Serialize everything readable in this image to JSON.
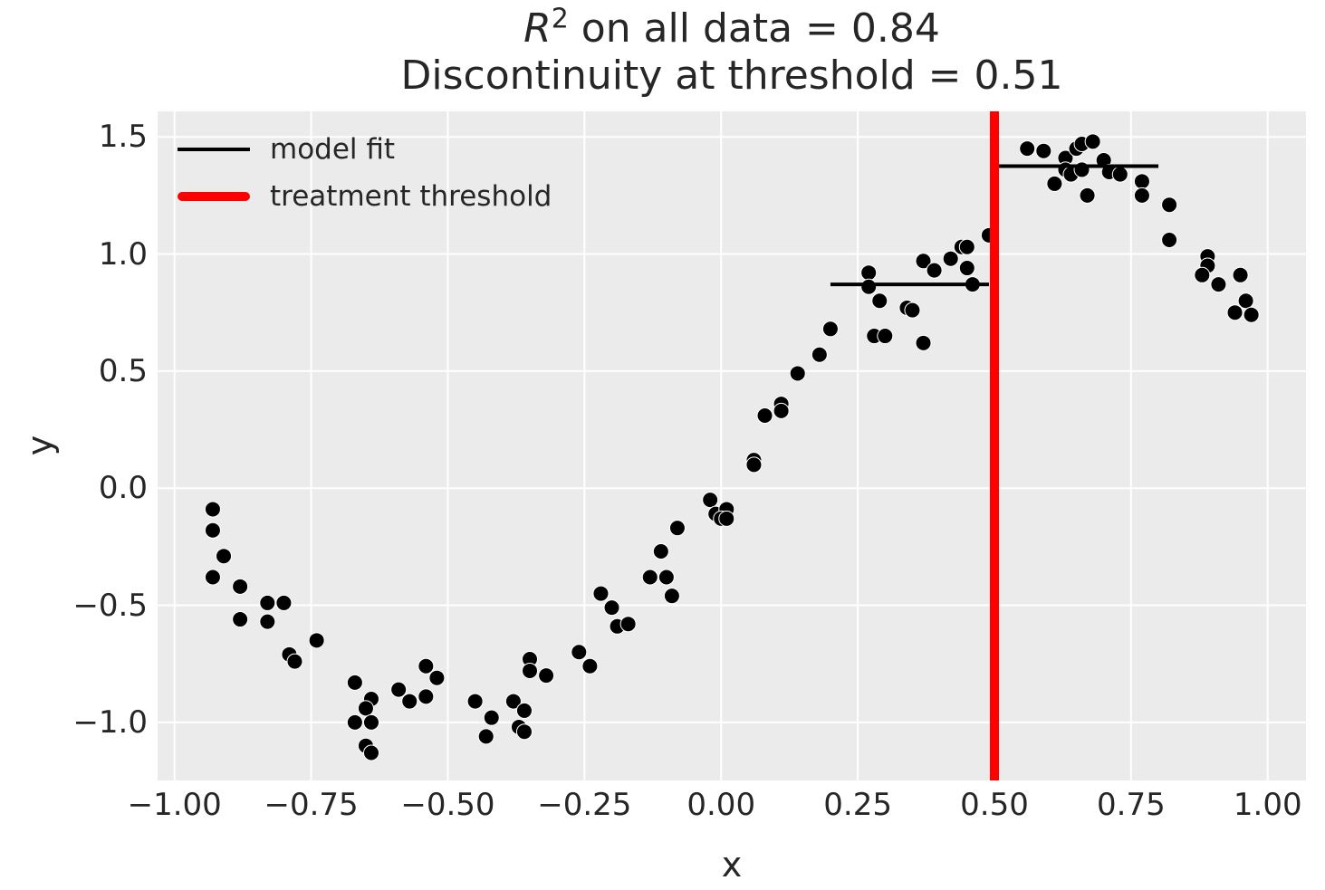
{
  "title": {
    "r_symbol": "R",
    "exponent": "2",
    "line1_rest": " on all data = 0.84",
    "line2": "Discontinuity at threshold = 0.51"
  },
  "legend": {
    "items": [
      {
        "label": "model fit",
        "color": "#000000",
        "style": "thin-line"
      },
      {
        "label": "treatment threshold",
        "color": "#ff0000",
        "style": "thick-line"
      }
    ]
  },
  "axes": {
    "xlabel": "x",
    "ylabel": "y",
    "x_ticks": [
      {
        "value": -1.0,
        "label": "−1.00"
      },
      {
        "value": -0.75,
        "label": "−0.75"
      },
      {
        "value": -0.5,
        "label": "−0.50"
      },
      {
        "value": -0.25,
        "label": "−0.25"
      },
      {
        "value": 0.0,
        "label": "0.00"
      },
      {
        "value": 0.25,
        "label": "0.25"
      },
      {
        "value": 0.5,
        "label": "0.50"
      },
      {
        "value": 0.75,
        "label": "0.75"
      },
      {
        "value": 1.0,
        "label": "1.00"
      }
    ],
    "y_ticks": [
      {
        "value": 1.5,
        "label": "1.5"
      },
      {
        "value": 1.0,
        "label": "1.0"
      },
      {
        "value": 0.5,
        "label": "0.5"
      },
      {
        "value": 0.0,
        "label": "0.0"
      },
      {
        "value": -0.5,
        "label": "−0.5"
      },
      {
        "value": -1.0,
        "label": "−1.0"
      }
    ]
  },
  "colors": {
    "figure_background": "#ffffff",
    "plot_background": "#ebebeb",
    "grid": "#ffffff",
    "scatter": "#000000",
    "fit_line": "#000000",
    "threshold_line": "#ff0000",
    "text": "#262626"
  },
  "chart_data": {
    "type": "scatter",
    "title": "R^2 on all data = 0.84\nDiscontinuity at threshold = 0.51",
    "xlabel": "x",
    "ylabel": "y",
    "xlim": [
      -1.031,
      1.07
    ],
    "ylim": [
      -1.248,
      1.609
    ],
    "grid": true,
    "legend_position": "upper left",
    "r_squared_all_data": 0.84,
    "discontinuity_at_threshold": 0.51,
    "treatment_threshold_x": 0.5,
    "model_fit_segments": [
      {
        "x_start": 0.2,
        "x_end": 0.49,
        "y": 0.87
      },
      {
        "x_start": 0.5,
        "x_end": 0.8,
        "y": 1.375
      }
    ],
    "points": [
      [
        -0.93,
        -0.09
      ],
      [
        -0.93,
        -0.18
      ],
      [
        -0.91,
        -0.29
      ],
      [
        -0.93,
        -0.38
      ],
      [
        -0.88,
        -0.42
      ],
      [
        -0.83,
        -0.49
      ],
      [
        -0.8,
        -0.49
      ],
      [
        -0.88,
        -0.56
      ],
      [
        -0.83,
        -0.57
      ],
      [
        -0.74,
        -0.65
      ],
      [
        -0.79,
        -0.71
      ],
      [
        -0.78,
        -0.74
      ],
      [
        -0.67,
        -0.83
      ],
      [
        -0.64,
        -0.9
      ],
      [
        -0.65,
        -0.94
      ],
      [
        -0.67,
        -1.0
      ],
      [
        -0.64,
        -1.0
      ],
      [
        -0.65,
        -1.1
      ],
      [
        -0.64,
        -1.13
      ],
      [
        -0.59,
        -0.86
      ],
      [
        -0.57,
        -0.91
      ],
      [
        -0.54,
        -0.76
      ],
      [
        -0.52,
        -0.81
      ],
      [
        -0.54,
        -0.89
      ],
      [
        -0.45,
        -0.91
      ],
      [
        -0.42,
        -0.98
      ],
      [
        -0.43,
        -1.06
      ],
      [
        -0.38,
        -0.91
      ],
      [
        -0.36,
        -0.95
      ],
      [
        -0.37,
        -1.02
      ],
      [
        -0.36,
        -1.04
      ],
      [
        -0.35,
        -0.73
      ],
      [
        -0.35,
        -0.78
      ],
      [
        -0.32,
        -0.8
      ],
      [
        -0.26,
        -0.7
      ],
      [
        -0.24,
        -0.76
      ],
      [
        -0.22,
        -0.45
      ],
      [
        -0.2,
        -0.51
      ],
      [
        -0.19,
        -0.59
      ],
      [
        -0.17,
        -0.58
      ],
      [
        -0.13,
        -0.38
      ],
      [
        -0.1,
        -0.38
      ],
      [
        -0.11,
        -0.27
      ],
      [
        -0.09,
        -0.46
      ],
      [
        -0.08,
        -0.17
      ],
      [
        -0.02,
        -0.05
      ],
      [
        -0.01,
        -0.11
      ],
      [
        0.01,
        -0.09
      ],
      [
        0.0,
        -0.13
      ],
      [
        0.01,
        -0.13
      ],
      [
        0.06,
        0.12
      ],
      [
        0.06,
        0.1
      ],
      [
        0.08,
        0.31
      ],
      [
        0.11,
        0.36
      ],
      [
        0.11,
        0.33
      ],
      [
        0.14,
        0.49
      ],
      [
        0.18,
        0.57
      ],
      [
        0.2,
        0.68
      ],
      [
        0.28,
        0.65
      ],
      [
        0.3,
        0.65
      ],
      [
        0.37,
        0.62
      ],
      [
        0.27,
        0.92
      ],
      [
        0.27,
        0.86
      ],
      [
        0.29,
        0.8
      ],
      [
        0.34,
        0.77
      ],
      [
        0.35,
        0.76
      ],
      [
        0.37,
        0.97
      ],
      [
        0.39,
        0.93
      ],
      [
        0.42,
        0.98
      ],
      [
        0.44,
        1.03
      ],
      [
        0.45,
        1.03
      ],
      [
        0.45,
        0.94
      ],
      [
        0.46,
        0.87
      ],
      [
        0.49,
        1.08
      ],
      [
        0.56,
        1.45
      ],
      [
        0.59,
        1.44
      ],
      [
        0.63,
        1.41
      ],
      [
        0.65,
        1.45
      ],
      [
        0.66,
        1.47
      ],
      [
        0.68,
        1.48
      ],
      [
        0.63,
        1.36
      ],
      [
        0.64,
        1.34
      ],
      [
        0.66,
        1.36
      ],
      [
        0.7,
        1.4
      ],
      [
        0.71,
        1.35
      ],
      [
        0.73,
        1.34
      ],
      [
        0.61,
        1.3
      ],
      [
        0.67,
        1.25
      ],
      [
        0.77,
        1.31
      ],
      [
        0.77,
        1.25
      ],
      [
        0.82,
        1.21
      ],
      [
        0.82,
        1.06
      ],
      [
        0.89,
        0.99
      ],
      [
        0.89,
        0.95
      ],
      [
        0.88,
        0.91
      ],
      [
        0.91,
        0.87
      ],
      [
        0.95,
        0.91
      ],
      [
        0.96,
        0.8
      ],
      [
        0.94,
        0.75
      ],
      [
        0.97,
        0.74
      ]
    ]
  }
}
